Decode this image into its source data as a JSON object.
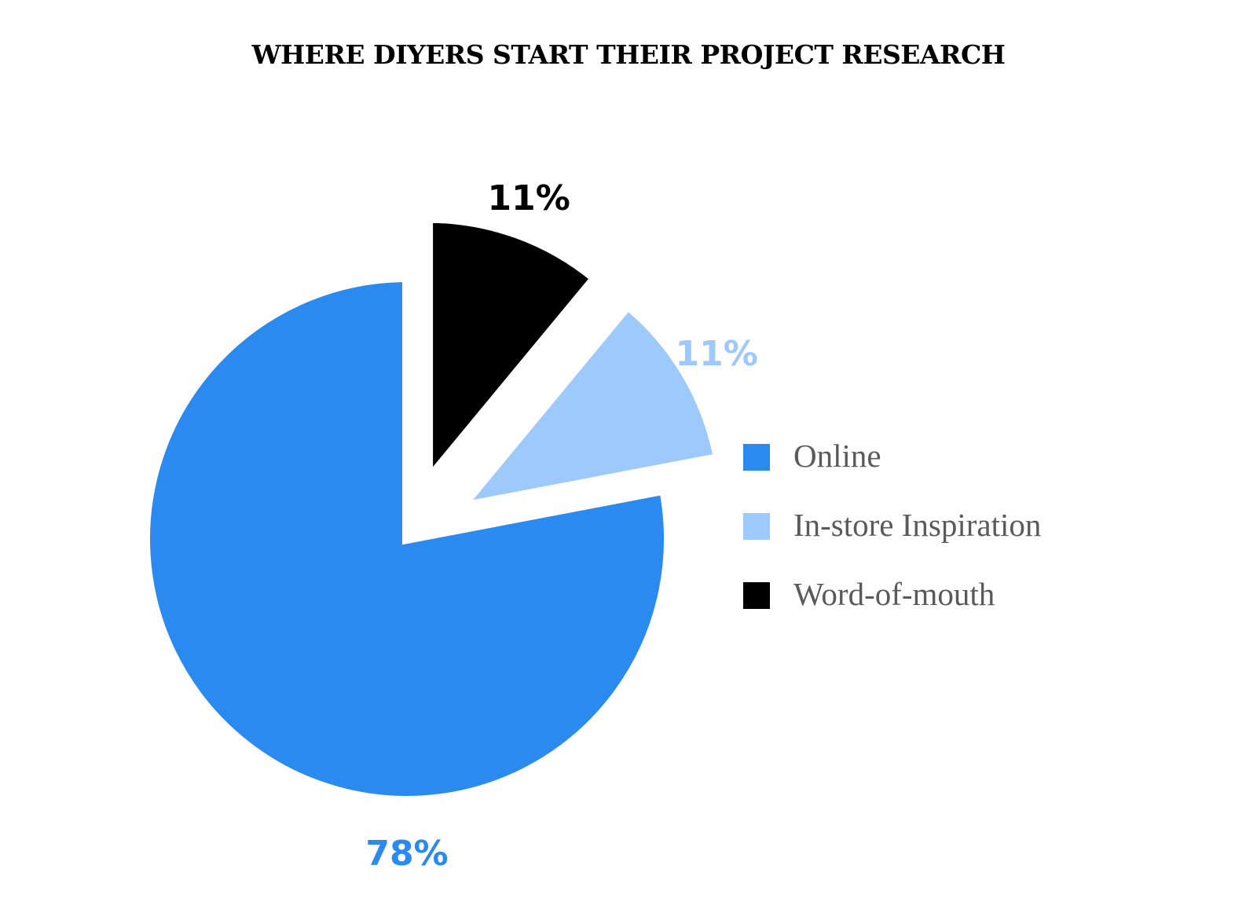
{
  "chart_data": {
    "type": "pie",
    "title": "WHERE DIYERS START THEIR PROJECT RESEARCH",
    "slices": [
      {
        "name": "Online",
        "value": 78,
        "label": "78%",
        "color": "#2b8af0",
        "label_color": "#2b8af0",
        "exploded": false
      },
      {
        "name": "In-store Inspiration",
        "value": 11,
        "label": "11%",
        "color": "#9ec9fc",
        "label_color": "#9ec9fc",
        "exploded": true
      },
      {
        "name": "Word-of-mouth",
        "value": 11,
        "label": "11%",
        "color": "#000000",
        "label_color": "#000000",
        "exploded": true
      }
    ],
    "legend_position": "right"
  }
}
